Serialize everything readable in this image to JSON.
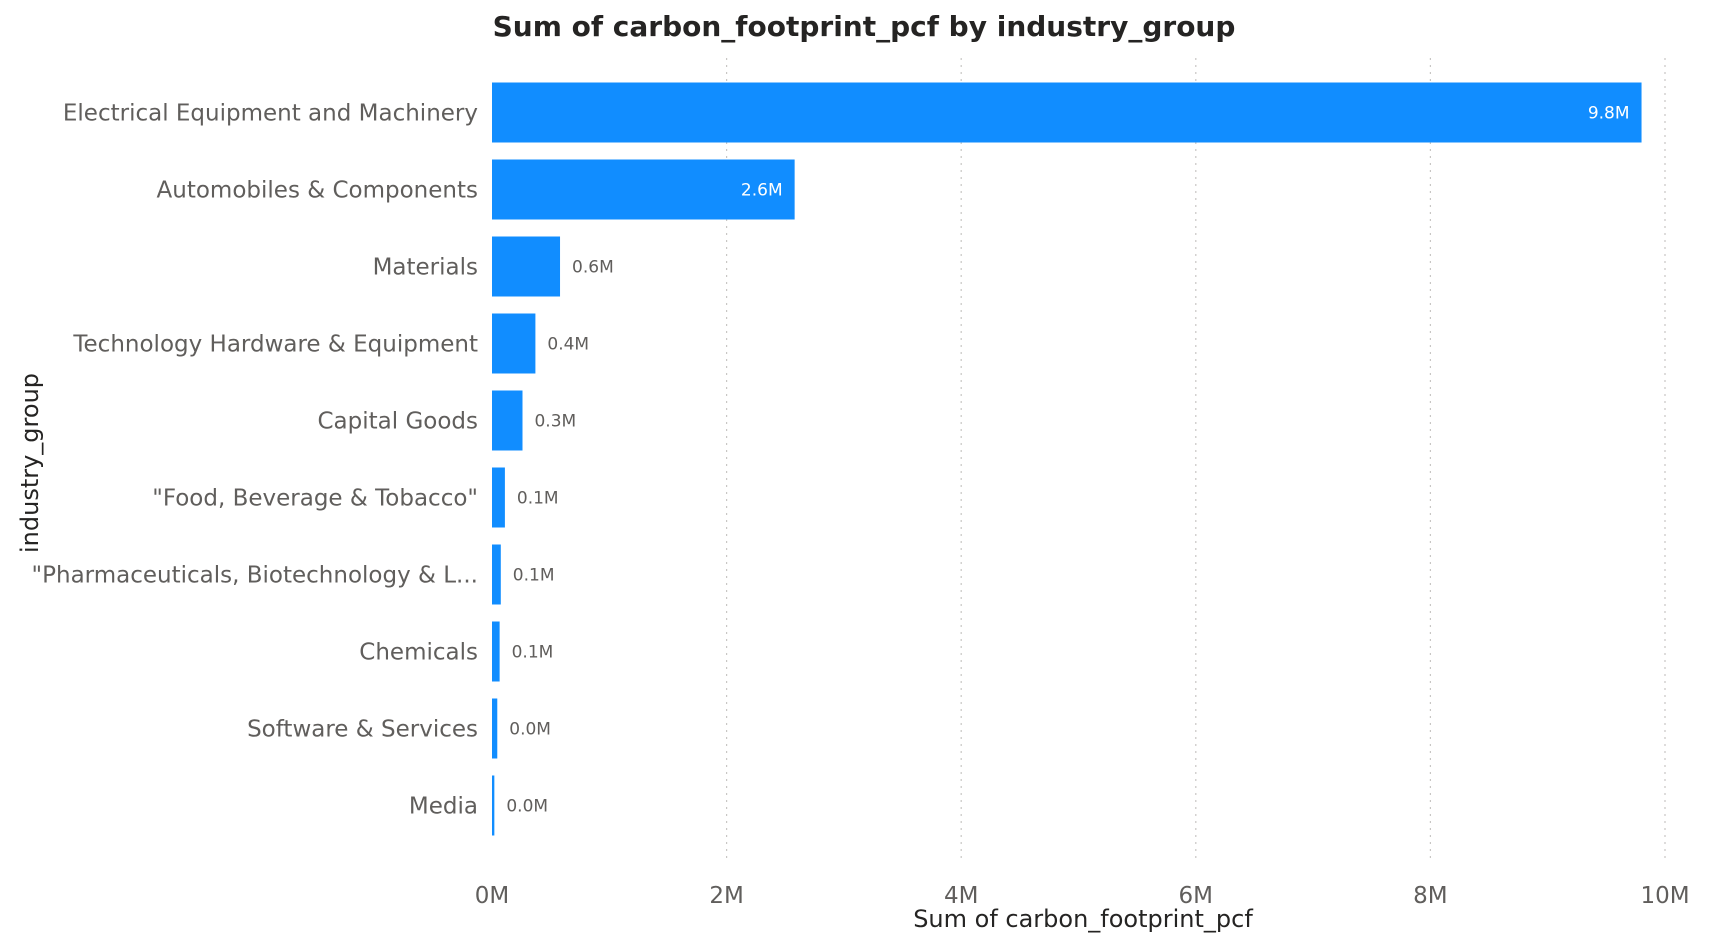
{
  "chart_data": {
    "type": "bar",
    "orientation": "horizontal",
    "title": "Sum of carbon_footprint_pcf by industry_group",
    "xlabel": "Sum of carbon_footprint_pcf",
    "ylabel": "industry_group",
    "categories": [
      "Electrical Equipment and Machinery",
      "Automobiles & Components",
      "Materials",
      "Technology Hardware & Equipment",
      "Capital Goods",
      "\"Food, Beverage & Tobacco\"",
      "\"Pharmaceuticals, Biotechnology & L...",
      "Chemicals",
      "Software & Services",
      "Media"
    ],
    "values": [
      9800000,
      2580000,
      580000,
      370000,
      260000,
      110000,
      75000,
      65000,
      45000,
      20000
    ],
    "data_labels": [
      "9.8M",
      "2.6M",
      "0.6M",
      "0.4M",
      "0.3M",
      "0.1M",
      "0.1M",
      "0.1M",
      "0.0M",
      "0.0M"
    ],
    "xlim": [
      0,
      10000000
    ],
    "xticks": [
      0,
      2000000,
      4000000,
      6000000,
      8000000,
      10000000
    ],
    "xtick_labels": [
      "0M",
      "2M",
      "4M",
      "6M",
      "8M",
      "10M"
    ],
    "grid": true,
    "bar_color": "#118dff"
  }
}
